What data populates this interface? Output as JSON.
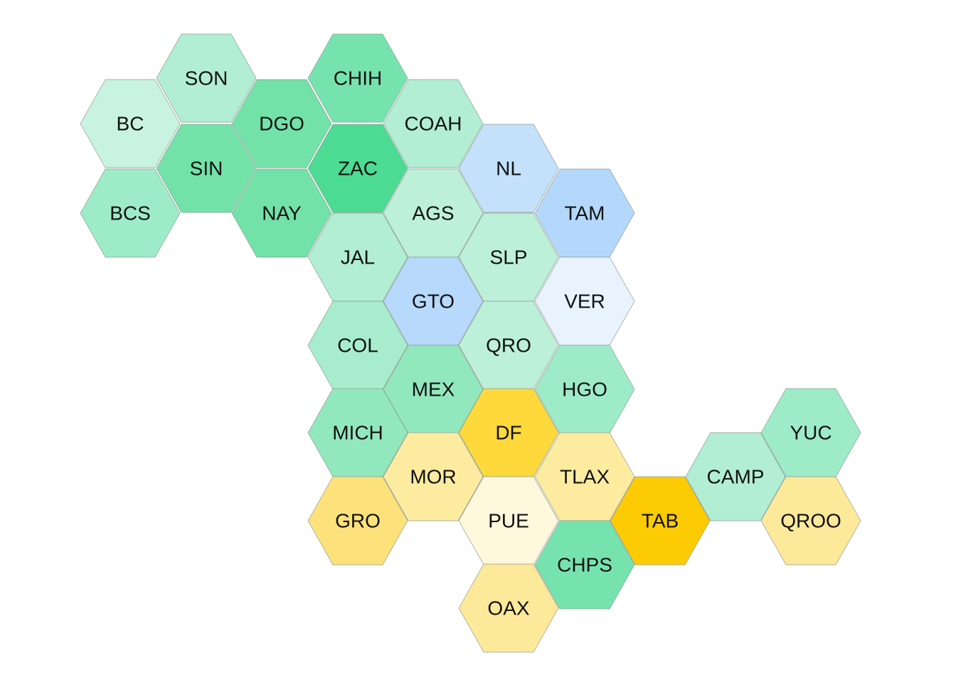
{
  "map": {
    "states": [
      {
        "abbr": "SON",
        "color": "#b1eed4"
      },
      {
        "abbr": "CHIH",
        "color": "#76e3ae"
      },
      {
        "abbr": "BC",
        "color": "#c8f3e0"
      },
      {
        "abbr": "DGO",
        "color": "#72e2a9"
      },
      {
        "abbr": "COAH",
        "color": "#b1eed4"
      },
      {
        "abbr": "SIN",
        "color": "#72e2a9"
      },
      {
        "abbr": "ZAC",
        "color": "#4cdb92"
      },
      {
        "abbr": "NL",
        "color": "#c3e1fa"
      },
      {
        "abbr": "BCS",
        "color": "#9decc7"
      },
      {
        "abbr": "NAY",
        "color": "#72e2a9"
      },
      {
        "abbr": "AGS",
        "color": "#bcf0d9"
      },
      {
        "abbr": "TAM",
        "color": "#b3d8fb"
      },
      {
        "abbr": "JAL",
        "color": "#b1eed4"
      },
      {
        "abbr": "SLP",
        "color": "#bcf0d9"
      },
      {
        "abbr": "GTO",
        "color": "#b6d9fc"
      },
      {
        "abbr": "VER",
        "color": "#e8f3fd"
      },
      {
        "abbr": "COL",
        "color": "#a7edcd"
      },
      {
        "abbr": "QRO",
        "color": "#bcf0d9"
      },
      {
        "abbr": "MEX",
        "color": "#92e8bd"
      },
      {
        "abbr": "HGO",
        "color": "#9decc7"
      },
      {
        "abbr": "YUC",
        "color": "#9decc7"
      },
      {
        "abbr": "MICH",
        "color": "#92e8bd"
      },
      {
        "abbr": "DF",
        "color": "#fdd93b"
      },
      {
        "abbr": "MOR",
        "color": "#fdec9f"
      },
      {
        "abbr": "TLAX",
        "color": "#fdec9f"
      },
      {
        "abbr": "CAMP",
        "color": "#b1eed4"
      },
      {
        "abbr": "GRO",
        "color": "#fde17a"
      },
      {
        "abbr": "PUE",
        "color": "#fff8dc"
      },
      {
        "abbr": "TAB",
        "color": "#fdcb03"
      },
      {
        "abbr": "QROO",
        "color": "#fde99a"
      },
      {
        "abbr": "CHPS",
        "color": "#76e3ae"
      },
      {
        "abbr": "OAX",
        "color": "#fde99a"
      }
    ]
  }
}
